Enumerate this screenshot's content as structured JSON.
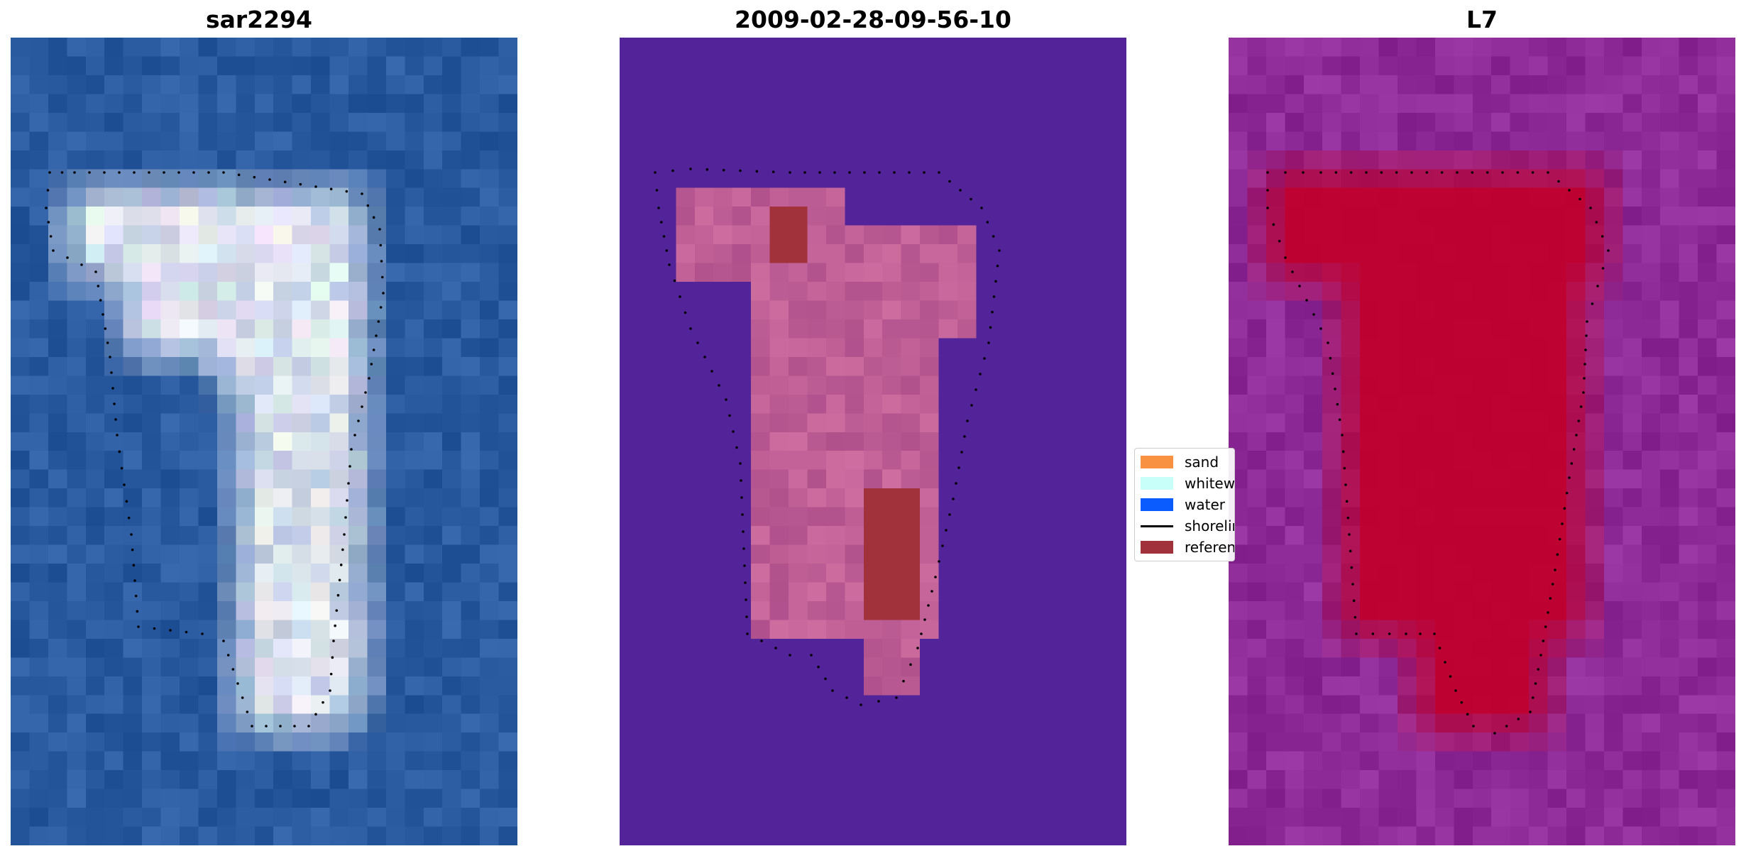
{
  "panels": [
    {
      "title": "sar2294",
      "image": "satellite-rgb"
    },
    {
      "title": "2009-02-28-09-56-10",
      "image": "classification-overlay"
    },
    {
      "title": "L7",
      "image": "sand-probability"
    }
  ],
  "legend": [
    {
      "label": "sand",
      "color": "#f99143",
      "kind": "patch"
    },
    {
      "label": "whitewater",
      "color": "#c8fff8",
      "kind": "patch"
    },
    {
      "label": "water",
      "color": "#0a5cff",
      "kind": "patch"
    },
    {
      "label": "shoreline",
      "color": "#000000",
      "kind": "line"
    },
    {
      "label": "reference",
      "color": "#a1313a",
      "kind": "patch"
    }
  ],
  "colors": {
    "ocean_rgb": "#2a5aa0",
    "classified_background": "#53239a",
    "probability_background": "#8e2b98",
    "probability_peak": "#c0002c",
    "shoreline_dots": "#000000"
  }
}
